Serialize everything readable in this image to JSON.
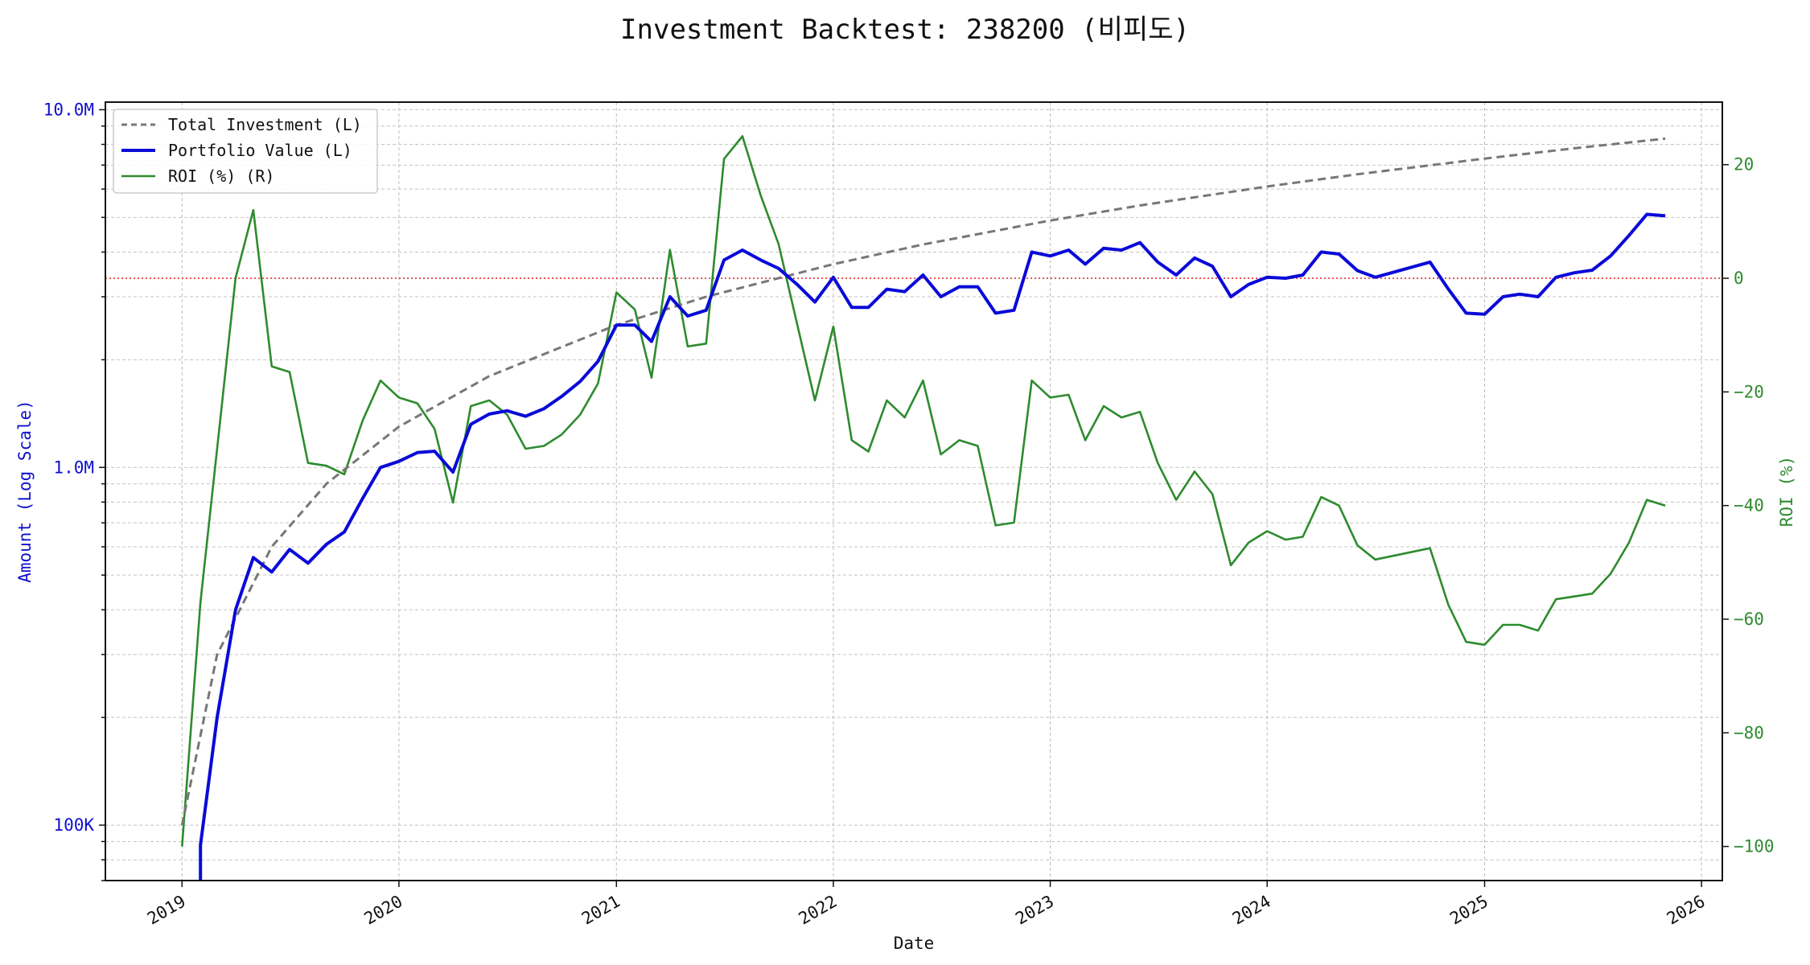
{
  "chart_data": {
    "type": "line",
    "title": "Investment Backtest: 238200 (비피도)",
    "xlabel": "Date",
    "ylabel_left": "Amount (Log Scale)",
    "ylabel_right": "ROI (%)",
    "x_ticks": [
      "2019",
      "2020",
      "2021",
      "2022",
      "2023",
      "2024",
      "2025",
      "2026"
    ],
    "y_left_scale": "log",
    "y_left_ticks": [
      {
        "value": 100000,
        "label": "100K"
      },
      {
        "value": 1000000,
        "label": "1.0M"
      },
      {
        "value": 10000000,
        "label": "10.0M"
      }
    ],
    "y_left_range": [
      70000,
      10500000
    ],
    "y_right_ticks": [
      {
        "value": -100,
        "label": "−100"
      },
      {
        "value": -80,
        "label": "−80"
      },
      {
        "value": -60,
        "label": "−60"
      },
      {
        "value": -40,
        "label": "−40"
      },
      {
        "value": -20,
        "label": "−20"
      },
      {
        "value": 0,
        "label": "0"
      },
      {
        "value": 20,
        "label": "20"
      }
    ],
    "y_right_range": [
      -106,
      31
    ],
    "x_range": [
      "2018-08-25",
      "2026-02-05"
    ],
    "grid": true,
    "legend_position": "top-left",
    "reference_line": {
      "axis": "right",
      "value": 0,
      "color": "#dd2222",
      "style": "dotted"
    },
    "colors": {
      "total_investment": "#777777",
      "portfolio": "#0a0ad8",
      "roi": "#2e8b2e"
    },
    "series": [
      {
        "name": "Total Investment (L)",
        "axis": "left",
        "style": "dashed",
        "points": [
          [
            "2019-01-01",
            100000
          ],
          [
            "2019-03-01",
            300000
          ],
          [
            "2019-06-01",
            600000
          ],
          [
            "2019-09-01",
            900000
          ],
          [
            "2020-01-01",
            1300000
          ],
          [
            "2020-06-01",
            1800000
          ],
          [
            "2021-01-01",
            2500000
          ],
          [
            "2021-06-01",
            3000000
          ],
          [
            "2022-01-01",
            3700000
          ],
          [
            "2022-06-01",
            4200000
          ],
          [
            "2023-01-01",
            4900000
          ],
          [
            "2023-06-01",
            5400000
          ],
          [
            "2024-01-01",
            6100000
          ],
          [
            "2024-06-01",
            6600000
          ],
          [
            "2025-01-01",
            7300000
          ],
          [
            "2025-06-01",
            7800000
          ],
          [
            "2025-11-01",
            8300000
          ]
        ]
      },
      {
        "name": "Portfolio Value (L)",
        "axis": "left",
        "style": "solid",
        "points": [
          [
            "2019-02-01",
            88000
          ],
          [
            "2019-03-01",
            200000
          ],
          [
            "2019-04-01",
            400000
          ],
          [
            "2019-05-01",
            560000
          ],
          [
            "2019-06-01",
            510000
          ],
          [
            "2019-07-01",
            590000
          ],
          [
            "2019-08-01",
            540000
          ],
          [
            "2019-09-01",
            610000
          ],
          [
            "2019-10-01",
            660000
          ],
          [
            "2019-11-01",
            820000
          ],
          [
            "2019-12-01",
            1000000
          ],
          [
            "2020-01-01",
            1040000
          ],
          [
            "2020-02-01",
            1100000
          ],
          [
            "2020-03-01",
            1110000
          ],
          [
            "2020-04-01",
            970000
          ],
          [
            "2020-05-01",
            1320000
          ],
          [
            "2020-06-01",
            1410000
          ],
          [
            "2020-07-01",
            1440000
          ],
          [
            "2020-08-01",
            1390000
          ],
          [
            "2020-09-01",
            1460000
          ],
          [
            "2020-10-01",
            1580000
          ],
          [
            "2020-11-01",
            1740000
          ],
          [
            "2020-12-01",
            1980000
          ],
          [
            "2021-01-01",
            2500000
          ],
          [
            "2021-02-01",
            2500000
          ],
          [
            "2021-03-01",
            2250000
          ],
          [
            "2021-04-01",
            3000000
          ],
          [
            "2021-05-01",
            2650000
          ],
          [
            "2021-06-01",
            2750000
          ],
          [
            "2021-07-01",
            3800000
          ],
          [
            "2021-08-01",
            4050000
          ],
          [
            "2021-09-01",
            3800000
          ],
          [
            "2021-10-01",
            3600000
          ],
          [
            "2021-11-01",
            3250000
          ],
          [
            "2021-12-01",
            2900000
          ],
          [
            "2022-01-01",
            3400000
          ],
          [
            "2022-02-01",
            2800000
          ],
          [
            "2022-03-01",
            2800000
          ],
          [
            "2022-04-01",
            3150000
          ],
          [
            "2022-05-01",
            3100000
          ],
          [
            "2022-06-01",
            3450000
          ],
          [
            "2022-07-01",
            3000000
          ],
          [
            "2022-08-01",
            3200000
          ],
          [
            "2022-09-01",
            3200000
          ],
          [
            "2022-10-01",
            2700000
          ],
          [
            "2022-11-01",
            2750000
          ],
          [
            "2022-12-01",
            4000000
          ],
          [
            "2023-01-01",
            3900000
          ],
          [
            "2023-02-01",
            4050000
          ],
          [
            "2023-03-01",
            3700000
          ],
          [
            "2023-04-01",
            4100000
          ],
          [
            "2023-05-01",
            4050000
          ],
          [
            "2023-06-01",
            4250000
          ],
          [
            "2023-07-01",
            3750000
          ],
          [
            "2023-08-01",
            3450000
          ],
          [
            "2023-09-01",
            3850000
          ],
          [
            "2023-10-01",
            3650000
          ],
          [
            "2023-11-01",
            3000000
          ],
          [
            "2023-12-01",
            3250000
          ],
          [
            "2024-01-01",
            3400000
          ],
          [
            "2024-02-01",
            3380000
          ],
          [
            "2024-03-01",
            3450000
          ],
          [
            "2024-04-01",
            4000000
          ],
          [
            "2024-05-01",
            3950000
          ],
          [
            "2024-06-01",
            3550000
          ],
          [
            "2024-07-01",
            3400000
          ],
          [
            "2024-10-01",
            3750000
          ],
          [
            "2024-11-01",
            3150000
          ],
          [
            "2024-12-01",
            2700000
          ],
          [
            "2025-01-01",
            2680000
          ],
          [
            "2025-02-01",
            3000000
          ],
          [
            "2025-03-01",
            3050000
          ],
          [
            "2025-04-01",
            3000000
          ],
          [
            "2025-05-01",
            3400000
          ],
          [
            "2025-06-01",
            3500000
          ],
          [
            "2025-07-01",
            3560000
          ],
          [
            "2025-08-01",
            3900000
          ],
          [
            "2025-09-01",
            4450000
          ],
          [
            "2025-10-01",
            5100000
          ],
          [
            "2025-11-01",
            5050000
          ]
        ]
      },
      {
        "name": "ROI (%) (R)",
        "axis": "right",
        "style": "solid",
        "points": [
          [
            "2019-01-01",
            -100
          ],
          [
            "2019-02-01",
            -57
          ],
          [
            "2019-03-01",
            -30
          ],
          [
            "2019-04-01",
            0
          ],
          [
            "2019-05-01",
            12
          ],
          [
            "2019-06-01",
            -15.5
          ],
          [
            "2019-07-01",
            -16.5
          ],
          [
            "2019-08-01",
            -32.5
          ],
          [
            "2019-09-01",
            -33
          ],
          [
            "2019-10-01",
            -34.5
          ],
          [
            "2019-11-01",
            -25
          ],
          [
            "2019-12-01",
            -18
          ],
          [
            "2020-01-01",
            -21
          ],
          [
            "2020-02-01",
            -22
          ],
          [
            "2020-03-01",
            -26.5
          ],
          [
            "2020-04-01",
            -39.5
          ],
          [
            "2020-05-01",
            -22.5
          ],
          [
            "2020-06-01",
            -21.5
          ],
          [
            "2020-07-01",
            -24
          ],
          [
            "2020-08-01",
            -30
          ],
          [
            "2020-09-01",
            -29.5
          ],
          [
            "2020-10-01",
            -27.5
          ],
          [
            "2020-11-01",
            -24
          ],
          [
            "2020-12-01",
            -18.5
          ],
          [
            "2021-01-01",
            -2.5
          ],
          [
            "2021-02-01",
            -5.5
          ],
          [
            "2021-03-01",
            -17.5
          ],
          [
            "2021-04-01",
            5
          ],
          [
            "2021-05-01",
            -12
          ],
          [
            "2021-06-01",
            -11.5
          ],
          [
            "2021-07-01",
            21
          ],
          [
            "2021-08-01",
            25
          ],
          [
            "2021-09-01",
            14.5
          ],
          [
            "2021-10-01",
            6
          ],
          [
            "2021-11-01",
            -8
          ],
          [
            "2021-12-01",
            -21.5
          ],
          [
            "2022-01-01",
            -8.5
          ],
          [
            "2022-02-01",
            -28.5
          ],
          [
            "2022-03-01",
            -30.5
          ],
          [
            "2022-04-01",
            -21.5
          ],
          [
            "2022-05-01",
            -24.5
          ],
          [
            "2022-06-01",
            -18
          ],
          [
            "2022-07-01",
            -31
          ],
          [
            "2022-08-01",
            -28.5
          ],
          [
            "2022-09-01",
            -29.5
          ],
          [
            "2022-10-01",
            -43.5
          ],
          [
            "2022-11-01",
            -43
          ],
          [
            "2022-12-01",
            -18
          ],
          [
            "2023-01-01",
            -21
          ],
          [
            "2023-02-01",
            -20.5
          ],
          [
            "2023-03-01",
            -28.5
          ],
          [
            "2023-04-01",
            -22.5
          ],
          [
            "2023-05-01",
            -24.5
          ],
          [
            "2023-06-01",
            -23.5
          ],
          [
            "2023-07-01",
            -32.5
          ],
          [
            "2023-08-01",
            -39
          ],
          [
            "2023-09-01",
            -34
          ],
          [
            "2023-10-01",
            -38
          ],
          [
            "2023-11-01",
            -50.5
          ],
          [
            "2023-12-01",
            -46.5
          ],
          [
            "2024-01-01",
            -44.5
          ],
          [
            "2024-02-01",
            -46
          ],
          [
            "2024-03-01",
            -45.5
          ],
          [
            "2024-04-01",
            -38.5
          ],
          [
            "2024-05-01",
            -40
          ],
          [
            "2024-06-01",
            -47
          ],
          [
            "2024-07-01",
            -49.5
          ],
          [
            "2024-10-01",
            -47.5
          ],
          [
            "2024-11-01",
            -57.5
          ],
          [
            "2024-12-01",
            -64
          ],
          [
            "2025-01-01",
            -64.5
          ],
          [
            "2025-02-01",
            -61
          ],
          [
            "2025-03-01",
            -61
          ],
          [
            "2025-04-01",
            -62
          ],
          [
            "2025-05-01",
            -56.5
          ],
          [
            "2025-06-01",
            -56
          ],
          [
            "2025-07-01",
            -55.5
          ],
          [
            "2025-08-01",
            -52
          ],
          [
            "2025-09-01",
            -46.5
          ],
          [
            "2025-10-01",
            -39
          ],
          [
            "2025-11-01",
            -40
          ]
        ]
      }
    ]
  }
}
